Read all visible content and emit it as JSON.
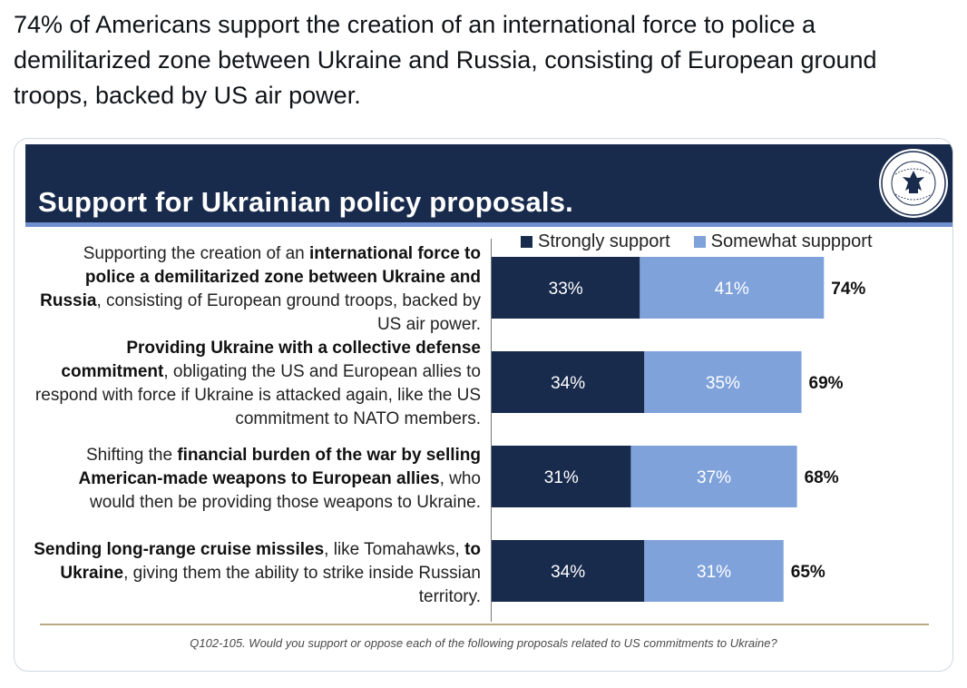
{
  "tweet": {
    "text": "74% of Americans support the creation of an international force to police a demilitarized zone between Ukraine and Russia, consisting of European ground troops, backed by US air power."
  },
  "slide": {
    "title": "Support for Ukrainian policy proposals.",
    "footnote": "Q102-105. Would you support or oppose each of the following proposals related to US commitments to Ukraine?"
  },
  "colors": {
    "strong": "#192b4d",
    "somewhat": "#7fa2db",
    "header": "#192b4d"
  },
  "chart_data": {
    "type": "bar",
    "orientation": "horizontal",
    "stacked": true,
    "title": "Support for Ukrainian policy proposals.",
    "legend_position": "top",
    "categories": [
      "Supporting the creation of an international force to police a demilitarized zone between Ukraine and Russia, consisting of European ground troops, backed by US air power.",
      "Providing Ukraine with a collective defense commitment, obligating the US and European allies to respond with force if Ukraine is attacked again, like the US commitment to NATO members.",
      "Shifting the financial burden of the war by selling American-made weapons to European allies, who would then be providing those weapons to Ukraine.",
      "Sending long-range cruise missiles, like Tomahawks, to Ukraine, giving them the ability to strike inside Russian territory."
    ],
    "series": [
      {
        "name": "Strongly support",
        "values": [
          33,
          34,
          31,
          34
        ],
        "labels": [
          "33%",
          "34%",
          "31%",
          "34%"
        ]
      },
      {
        "name": "Somewhat suppport",
        "values": [
          41,
          35,
          37,
          31
        ],
        "labels": [
          "41%",
          "35%",
          "37%",
          "31%"
        ]
      }
    ],
    "totals": [
      "74%",
      "69%",
      "68%",
      "65%"
    ],
    "xlim": [
      0,
      90
    ]
  }
}
